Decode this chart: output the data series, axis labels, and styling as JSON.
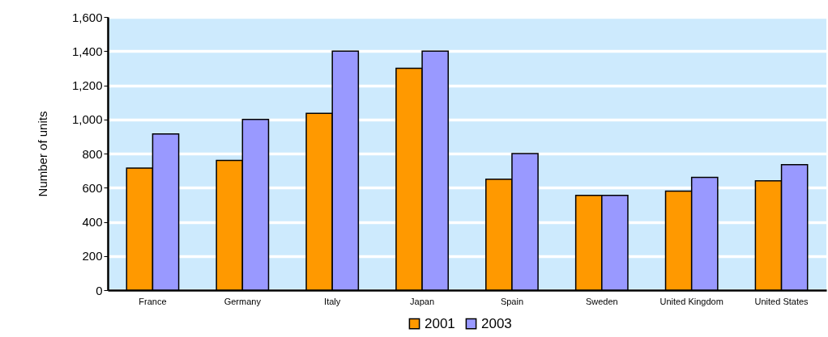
{
  "chart_data": {
    "type": "bar",
    "ylabel": "Number of units",
    "categories": [
      "France",
      "Germany",
      "Italy",
      "Japan",
      "Spain",
      "Sweden",
      "United Kingdom",
      "United States"
    ],
    "series": [
      {
        "name": "2001",
        "color": "#ff9900",
        "values": [
          715,
          760,
          1035,
          1300,
          650,
          555,
          580,
          640
        ]
      },
      {
        "name": "2003",
        "color": "#9999ff",
        "values": [
          915,
          1000,
          1400,
          1400,
          800,
          555,
          660,
          735
        ]
      }
    ],
    "ylim": [
      0,
      1600
    ],
    "yticks": [
      0,
      200,
      400,
      600,
      800,
      {
        "value": 1000,
        "label": "1,000"
      },
      {
        "value": 1200,
        "label": "1,200"
      },
      {
        "value": 1400,
        "label": "1,400"
      },
      {
        "value": 1600,
        "label": "1,600"
      }
    ],
    "grid": "y",
    "legend": "bottom"
  }
}
